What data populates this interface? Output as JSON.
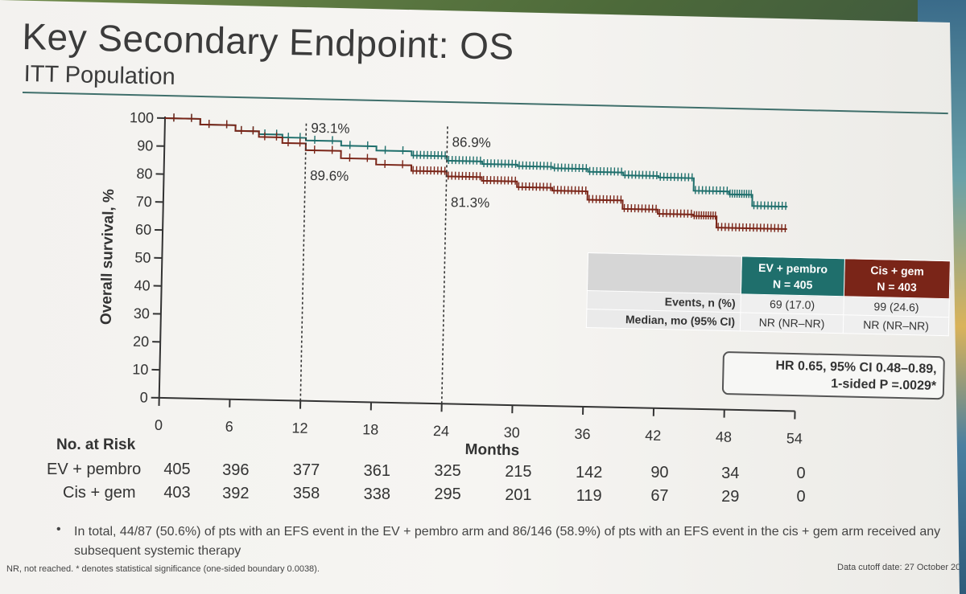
{
  "slide": {
    "title": "Key Secondary Endpoint: OS",
    "subtitle": "ITT Population"
  },
  "chart_data": {
    "type": "line",
    "title": "Key Secondary Endpoint: OS",
    "subtitle": "ITT Population",
    "xlabel": "Months",
    "ylabel": "Overall survival, %",
    "xlim": [
      0,
      54
    ],
    "ylim": [
      0,
      100
    ],
    "x_ticks": [
      0,
      6,
      12,
      18,
      24,
      30,
      36,
      42,
      48,
      54
    ],
    "y_ticks": [
      0,
      10,
      20,
      30,
      40,
      50,
      60,
      70,
      80,
      90,
      100
    ],
    "colors": {
      "ev": "#1f6f6c",
      "cis": "#7a2518"
    },
    "series": [
      {
        "name": "EV + pembro",
        "x": [
          0,
          3,
          6,
          8,
          10,
          12,
          15,
          18,
          21,
          24,
          27,
          30,
          33,
          36,
          39,
          42,
          45,
          48,
          50,
          53
        ],
        "y": [
          100,
          98,
          96,
          95,
          94,
          93.1,
          91.5,
          90,
          88.5,
          86.9,
          86,
          85.5,
          85,
          84,
          83,
          82.5,
          78,
          77,
          73,
          73
        ]
      },
      {
        "name": "Cis + gem",
        "x": [
          0,
          3,
          6,
          8,
          10,
          12,
          15,
          18,
          21,
          24,
          27,
          30,
          33,
          36,
          39,
          42,
          45,
          47,
          50,
          53
        ],
        "y": [
          100,
          98,
          96,
          94,
          92,
          89.6,
          87,
          85,
          83,
          81.3,
          80,
          78,
          77,
          74,
          71,
          69.5,
          69,
          65,
          65,
          65
        ]
      }
    ],
    "annotations": [
      {
        "x": 12,
        "label": "93.1%",
        "series": "EV + pembro"
      },
      {
        "x": 12,
        "label": "89.6%",
        "series": "Cis + gem"
      },
      {
        "x": 24,
        "label": "86.9%",
        "series": "EV + pembro"
      },
      {
        "x": 24,
        "label": "81.3%",
        "series": "Cis + gem"
      }
    ],
    "number_at_risk": {
      "title": "No. at Risk",
      "rows": [
        {
          "label": "EV + pembro",
          "values": [
            "405",
            "396",
            "377",
            "361",
            "325",
            "215",
            "142",
            "90",
            "34",
            "0"
          ]
        },
        {
          "label": "Cis + gem",
          "values": [
            "403",
            "392",
            "358",
            "338",
            "295",
            "201",
            "119",
            "67",
            "29",
            "0"
          ]
        }
      ]
    }
  },
  "summary_table": {
    "headers": {
      "ev": {
        "line1": "EV + pembro",
        "line2": "N = 405"
      },
      "cis": {
        "line1": "Cis + gem",
        "line2": "N = 403"
      }
    },
    "rows": [
      {
        "label": "Events, n (%)",
        "ev": "69 (17.0)",
        "cis": "99 (24.6)"
      },
      {
        "label": "Median, mo (95% CI)",
        "ev": "NR (NR–NR)",
        "cis": "NR (NR–NR)"
      }
    ]
  },
  "hazard_ratio": {
    "line1": "HR 0.65, 95% CI 0.48–0.89,",
    "line2": "1-sided P =.0029*"
  },
  "footnotes": {
    "bullet": "•",
    "text": "In total, 44/87 (50.6%) of pts with an EFS event in the EV + pembro arm and 86/146 (58.9%) of pts with an EFS event in the cis + gem arm received any subsequent systemic therapy",
    "abbrev": "NR, not reached. * denotes statistical significance (one-sided boundary 0.0038).",
    "cutoff": "Data cutoff date: 27 October 20"
  }
}
